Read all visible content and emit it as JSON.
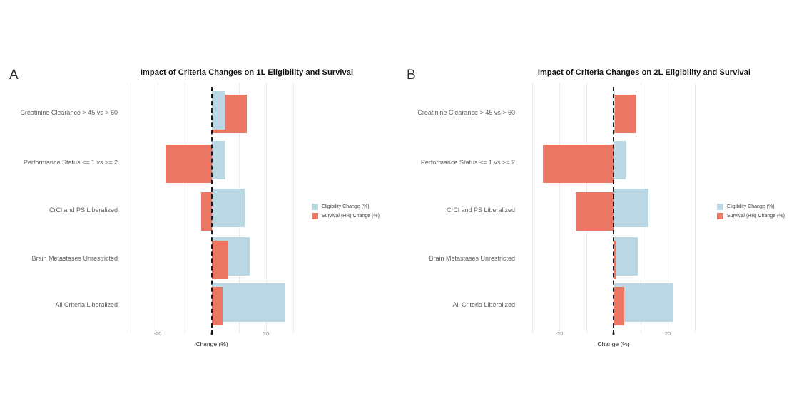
{
  "figure": {
    "background": "#ffffff"
  },
  "axis": {
    "label": "Change (%)",
    "ticks": [
      -20,
      0,
      20
    ]
  },
  "legend": {
    "items": [
      {
        "label": "Eligibility Change (%)",
        "color": "#b9d8e3"
      },
      {
        "label": "Survival (HR) Change (%)",
        "color": "#ec7765"
      }
    ]
  },
  "chart_data": [
    {
      "type": "bar",
      "orientation": "horizontal",
      "panel_label": "A",
      "title": "Impact of Criteria Changes on 1L Eligibility and Survival",
      "categories": [
        "Creatinine Clearance > 45 vs > 60",
        "Performance Status <= 1 vs >= 2",
        "CrCl and PS Liberalized",
        "Brain Metastases Unrestricted",
        "All Criteria Liberalized"
      ],
      "series": [
        {
          "name": "Eligibility Change (%)",
          "color": "#b9d8e3",
          "values": [
            5,
            5,
            12,
            14,
            27
          ]
        },
        {
          "name": "Survival (HR) Change (%)",
          "color": "#ec7765",
          "values": [
            13,
            -17,
            -4,
            6,
            4
          ]
        }
      ],
      "xlabel": "Change (%)",
      "xticks": [
        -20,
        0,
        20
      ],
      "xlim": [
        -32,
        38
      ],
      "gridlines": [
        -30,
        -20,
        -10,
        10,
        20,
        30
      ],
      "zero_reference_line": "dashed",
      "legend_position": "right"
    },
    {
      "type": "bar",
      "orientation": "horizontal",
      "panel_label": "B",
      "title": "Impact of Criteria Changes on 2L Eligibility and Survival",
      "categories": [
        "Creatinine Clearance > 45 vs > 60",
        "Performance Status <= 1 vs >= 2",
        "CrCl and PS Liberalized",
        "Brain Metastases Unrestricted",
        "All Criteria Liberalized"
      ],
      "series": [
        {
          "name": "Eligibility Change (%)",
          "color": "#b9d8e3",
          "values": [
            0.5,
            4.5,
            13,
            9,
            22
          ]
        },
        {
          "name": "Survival (HR) Change (%)",
          "color": "#ec7765",
          "values": [
            8.5,
            -26,
            -14,
            1,
            4
          ]
        }
      ],
      "xlabel": "Change (%)",
      "xticks": [
        -20,
        0,
        20
      ],
      "xlim": [
        -32,
        38
      ],
      "gridlines": [
        -30,
        -20,
        -10,
        10,
        20,
        30
      ],
      "zero_reference_line": "dashed",
      "legend_position": "right"
    }
  ]
}
